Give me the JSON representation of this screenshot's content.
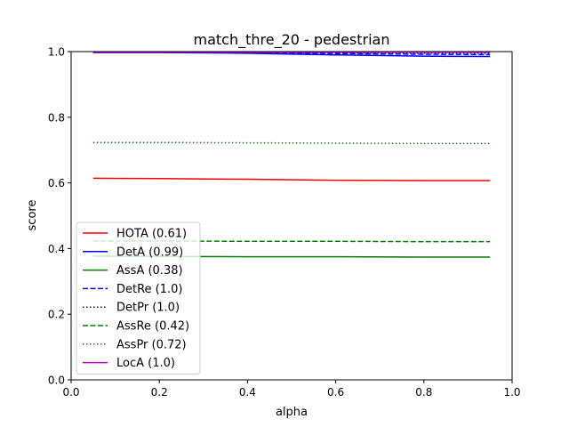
{
  "chart_data": {
    "type": "line",
    "title": "match_thre_20 - pedestrian",
    "xlabel": "alpha",
    "ylabel": "score",
    "xlim": [
      0.0,
      1.0
    ],
    "ylim": [
      0.0,
      1.0
    ],
    "xticks": [
      "0.0",
      "0.2",
      "0.4",
      "0.6",
      "0.8",
      "1.0"
    ],
    "yticks": [
      "0.0",
      "0.2",
      "0.4",
      "0.6",
      "0.8",
      "1.0"
    ],
    "grid": false,
    "legend_position": "lower-left",
    "x": [
      0.05,
      0.2,
      0.4,
      0.6,
      0.8,
      0.95
    ],
    "series": [
      {
        "name": "HOTA (0.61)",
        "color": "#ff0000",
        "dash": "solid",
        "values": [
          0.614,
          0.613,
          0.611,
          0.608,
          0.607,
          0.607
        ]
      },
      {
        "name": "DetA (0.99)",
        "color": "#0000ff",
        "dash": "solid",
        "values": [
          0.997,
          0.997,
          0.995,
          0.99,
          0.986,
          0.985
        ]
      },
      {
        "name": "AssA (0.38)",
        "color": "#008000",
        "dash": "solid",
        "values": [
          0.377,
          0.376,
          0.375,
          0.375,
          0.374,
          0.374
        ]
      },
      {
        "name": "DetRe (1.0)",
        "color": "#0000ff",
        "dash": "dashed",
        "values": [
          0.998,
          0.998,
          0.997,
          0.994,
          0.992,
          0.991
        ]
      },
      {
        "name": "DetPr (1.0)",
        "color": "#0000ff",
        "dash": "dotted",
        "values": [
          0.999,
          0.999,
          0.998,
          0.996,
          0.995,
          0.995
        ]
      },
      {
        "name": "AssRe (0.42)",
        "color": "#008000",
        "dash": "dashed",
        "values": [
          0.423,
          0.423,
          0.422,
          0.422,
          0.421,
          0.421
        ]
      },
      {
        "name": "AssPr (0.72)",
        "color": "#008000",
        "dash": "dotted",
        "values": [
          0.723,
          0.723,
          0.722,
          0.721,
          0.72,
          0.72
        ]
      },
      {
        "name": "LocA (1.0)",
        "color": "#bf00bf",
        "dash": "solid",
        "values": [
          0.998,
          0.998,
          0.998,
          0.998,
          0.998,
          0.998
        ]
      }
    ]
  }
}
